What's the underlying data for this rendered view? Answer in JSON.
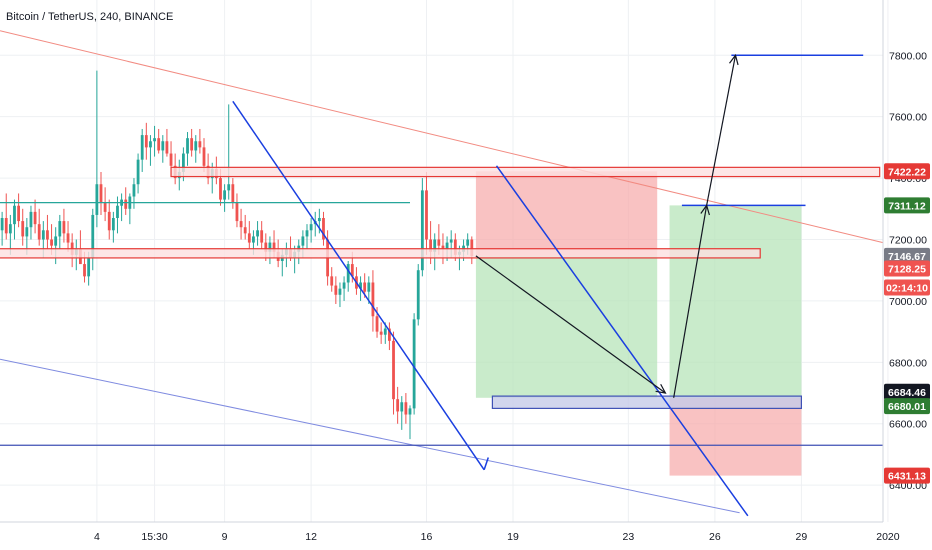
{
  "header": {
    "title": "Bitcoin / TetherUS, 240, BINANCE"
  },
  "chart_data": {
    "type": "candlestick",
    "symbol": "Bitcoin / TetherUS",
    "interval": "240",
    "exchange": "BINANCE",
    "ylim": [
      6280,
      7980
    ],
    "y_ticks": [
      6400,
      6600,
      6800,
      7000,
      7200,
      7400,
      7600,
      7800
    ],
    "y_tick_labels": [
      "6400.00",
      "6600.00",
      "6800.00",
      "7000.00",
      "7200.00",
      "7400.00",
      "7600.00",
      "7800.00"
    ],
    "x_ticks": [
      {
        "label": "4",
        "bar": 24
      },
      {
        "label": "15:30",
        "bar": 38
      },
      {
        "label": "9",
        "bar": 55
      },
      {
        "label": "12",
        "bar": 76
      },
      {
        "label": "16",
        "bar": 104
      },
      {
        "label": "19",
        "bar": 125
      },
      {
        "label": "23",
        "bar": 153
      },
      {
        "label": "26",
        "bar": 174
      },
      {
        "label": "29",
        "bar": 195
      },
      {
        "label": "2020",
        "bar": 216
      }
    ],
    "candles": [
      [
        7190,
        7260,
        7120,
        7230
      ],
      [
        7230,
        7290,
        7180,
        7270
      ],
      [
        7270,
        7350,
        7200,
        7220
      ],
      [
        7220,
        7280,
        7150,
        7250
      ],
      [
        7250,
        7330,
        7200,
        7310
      ],
      [
        7310,
        7350,
        7240,
        7260
      ],
      [
        7260,
        7300,
        7180,
        7210
      ],
      [
        7210,
        7270,
        7150,
        7240
      ],
      [
        7240,
        7310,
        7200,
        7290
      ],
      [
        7290,
        7330,
        7220,
        7250
      ],
      [
        7250,
        7300,
        7180,
        7200
      ],
      [
        7200,
        7260,
        7140,
        7230
      ],
      [
        7230,
        7280,
        7170,
        7200
      ],
      [
        7200,
        7250,
        7150,
        7180
      ],
      [
        7180,
        7240,
        7120,
        7210
      ],
      [
        7210,
        7280,
        7170,
        7260
      ],
      [
        7260,
        7300,
        7190,
        7220
      ],
      [
        7220,
        7260,
        7160,
        7190
      ],
      [
        7190,
        7220,
        7110,
        7150
      ],
      [
        7150,
        7200,
        7100,
        7170
      ],
      [
        7170,
        7230,
        7130,
        7120
      ],
      [
        7120,
        7160,
        7060,
        7080
      ],
      [
        7080,
        7160,
        7050,
        7140
      ],
      [
        7140,
        7300,
        7100,
        7280
      ],
      [
        7280,
        7750,
        7240,
        7380
      ],
      [
        7380,
        7420,
        7280,
        7320
      ],
      [
        7320,
        7370,
        7260,
        7290
      ],
      [
        7290,
        7330,
        7200,
        7230
      ],
      [
        7230,
        7290,
        7190,
        7270
      ],
      [
        7270,
        7340,
        7220,
        7310
      ],
      [
        7310,
        7350,
        7260,
        7330
      ],
      [
        7330,
        7370,
        7280,
        7300
      ],
      [
        7300,
        7350,
        7250,
        7340
      ],
      [
        7340,
        7400,
        7300,
        7380
      ],
      [
        7380,
        7480,
        7350,
        7460
      ],
      [
        7460,
        7560,
        7420,
        7540
      ],
      [
        7540,
        7580,
        7460,
        7500
      ],
      [
        7500,
        7540,
        7440,
        7520
      ],
      [
        7520,
        7570,
        7470,
        7530
      ],
      [
        7530,
        7560,
        7480,
        7490
      ],
      [
        7490,
        7540,
        7450,
        7520
      ],
      [
        7520,
        7560,
        7470,
        7480
      ],
      [
        7480,
        7520,
        7410,
        7440
      ],
      [
        7440,
        7480,
        7380,
        7400
      ],
      [
        7400,
        7460,
        7360,
        7420
      ],
      [
        7420,
        7500,
        7390,
        7480
      ],
      [
        7480,
        7550,
        7440,
        7530
      ],
      [
        7530,
        7560,
        7470,
        7490
      ],
      [
        7490,
        7540,
        7450,
        7520
      ],
      [
        7520,
        7560,
        7480,
        7500
      ],
      [
        7500,
        7530,
        7420,
        7440
      ],
      [
        7440,
        7480,
        7380,
        7400
      ],
      [
        7400,
        7450,
        7350,
        7430
      ],
      [
        7430,
        7470,
        7380,
        7400
      ],
      [
        7400,
        7430,
        7310,
        7330
      ],
      [
        7330,
        7380,
        7290,
        7360
      ],
      [
        7360,
        7640,
        7330,
        7380
      ],
      [
        7380,
        7400,
        7300,
        7320
      ],
      [
        7320,
        7350,
        7240,
        7260
      ],
      [
        7260,
        7300,
        7200,
        7240
      ],
      [
        7240,
        7280,
        7200,
        7220
      ],
      [
        7220,
        7260,
        7170,
        7190
      ],
      [
        7190,
        7230,
        7150,
        7210
      ],
      [
        7210,
        7260,
        7180,
        7230
      ],
      [
        7230,
        7260,
        7170,
        7190
      ],
      [
        7190,
        7220,
        7130,
        7160
      ],
      [
        7160,
        7210,
        7120,
        7190
      ],
      [
        7190,
        7230,
        7140,
        7160
      ],
      [
        7160,
        7200,
        7110,
        7130
      ],
      [
        7130,
        7170,
        7080,
        7150
      ],
      [
        7150,
        7190,
        7110,
        7170
      ],
      [
        7170,
        7210,
        7130,
        7140
      ],
      [
        7140,
        7180,
        7090,
        7160
      ],
      [
        7160,
        7200,
        7120,
        7180
      ],
      [
        7180,
        7230,
        7140,
        7210
      ],
      [
        7210,
        7250,
        7170,
        7230
      ],
      [
        7230,
        7270,
        7190,
        7250
      ],
      [
        7250,
        7290,
        7210,
        7260
      ],
      [
        7260,
        7300,
        7220,
        7270
      ],
      [
        7270,
        7290,
        7180,
        7200
      ],
      [
        7200,
        7230,
        7050,
        7080
      ],
      [
        7080,
        7110,
        7030,
        7050
      ],
      [
        7050,
        7080,
        6990,
        7020
      ],
      [
        7020,
        7060,
        6980,
        7040
      ],
      [
        7040,
        7080,
        7000,
        7060
      ],
      [
        7060,
        7130,
        7030,
        7120
      ],
      [
        7120,
        7160,
        7060,
        7080
      ],
      [
        7080,
        7110,
        7020,
        7040
      ],
      [
        7040,
        7080,
        7000,
        7060
      ],
      [
        7060,
        7090,
        7010,
        7030
      ],
      [
        7030,
        7080,
        6990,
        7060
      ],
      [
        7060,
        7100,
        6900,
        6950
      ],
      [
        6950,
        6980,
        6880,
        6900
      ],
      [
        6900,
        6930,
        6860,
        6890
      ],
      [
        6890,
        6930,
        6860,
        6910
      ],
      [
        6910,
        6930,
        6840,
        6870
      ],
      [
        6870,
        6900,
        6630,
        6680
      ],
      [
        6680,
        6720,
        6600,
        6640
      ],
      [
        6640,
        6690,
        6580,
        6670
      ],
      [
        6670,
        6700,
        6600,
        6630
      ],
      [
        6630,
        6660,
        6550,
        6650
      ],
      [
        6650,
        6960,
        6630,
        6940
      ],
      [
        6940,
        7120,
        6920,
        7100
      ],
      [
        7100,
        7400,
        7080,
        7360
      ],
      [
        7360,
        7420,
        7150,
        7200
      ],
      [
        7200,
        7260,
        7120,
        7160
      ],
      [
        7160,
        7220,
        7100,
        7200
      ],
      [
        7200,
        7250,
        7150,
        7180
      ],
      [
        7180,
        7220,
        7120,
        7170
      ],
      [
        7170,
        7210,
        7130,
        7190
      ],
      [
        7190,
        7230,
        7140,
        7200
      ],
      [
        7200,
        7220,
        7130,
        7150
      ],
      [
        7150,
        7180,
        7100,
        7160
      ],
      [
        7160,
        7200,
        7130,
        7180
      ],
      [
        7180,
        7220,
        7150,
        7200
      ],
      [
        7200,
        7210,
        7120,
        7146
      ]
    ],
    "drawings": {
      "horizontal_lines": [
        {
          "price": 7320,
          "color": "#26a69a",
          "from": "left",
          "to_bar": 100
        },
        {
          "price": 6530,
          "color": "#3f51b5",
          "from": "left",
          "to": "right"
        },
        {
          "price": 7800,
          "color": "#1a3fe0",
          "from_bar": 178,
          "to_bar": 210
        },
        {
          "price": 7311.12,
          "color": "#1a3fe0",
          "from_bar": 166,
          "to_bar": 196
        }
      ],
      "zones": [
        {
          "kind": "resistance",
          "color": "#e53935",
          "top": 7435,
          "bottom": 7405
        },
        {
          "kind": "resistance",
          "color": "#e53935",
          "top": 7170,
          "bottom": 7140
        },
        {
          "kind": "support",
          "color": "#3f51b5",
          "top": 6690,
          "bottom": 6650
        }
      ],
      "positions": [
        {
          "type": "short",
          "entry": 7146.67,
          "stop": 7422.22,
          "target": 6684.46
        },
        {
          "type": "long",
          "entry": 6684.46,
          "stop": 6431.13,
          "target": 7311.12
        }
      ],
      "arrows": [
        {
          "from_price": 7146.67,
          "to_price": 6700
        },
        {
          "from_price": 6684.46,
          "to_price": 7311.12
        },
        {
          "from_price": 7311.12,
          "to_price": 7800
        }
      ]
    },
    "price_badges": [
      {
        "price": 7422.22,
        "label": "7422.22",
        "bg": "#e53935",
        "fg": "#ffffff"
      },
      {
        "price": 7311.12,
        "label": "7311.12",
        "bg": "#2e7d32",
        "fg": "#ffffff"
      },
      {
        "price": 7146.67,
        "label": "7146.67",
        "bg": "#787b86",
        "fg": "#ffffff"
      },
      {
        "price": 7128.25,
        "label": "7128.25",
        "bg": "#ef5350",
        "fg": "#ffffff"
      },
      {
        "price": 6684.46,
        "label": "6684.46",
        "bg": "#131722",
        "fg": "#ffffff"
      },
      {
        "price": 6680.01,
        "label": "6680.01",
        "bg": "#2e7d32",
        "fg": "#ffffff"
      },
      {
        "price": 6431.13,
        "label": "6431.13",
        "bg": "#e53935",
        "fg": "#ffffff"
      }
    ],
    "countdown": {
      "label": "02:14:10",
      "bg": "#ef5350",
      "fg": "#ffffff"
    },
    "colors": {
      "up": "#26a69a",
      "down": "#ef5350",
      "grid": "#eef0f3",
      "axis_line": "#d1d4dc",
      "trend_line": "#1a3fe0"
    }
  }
}
